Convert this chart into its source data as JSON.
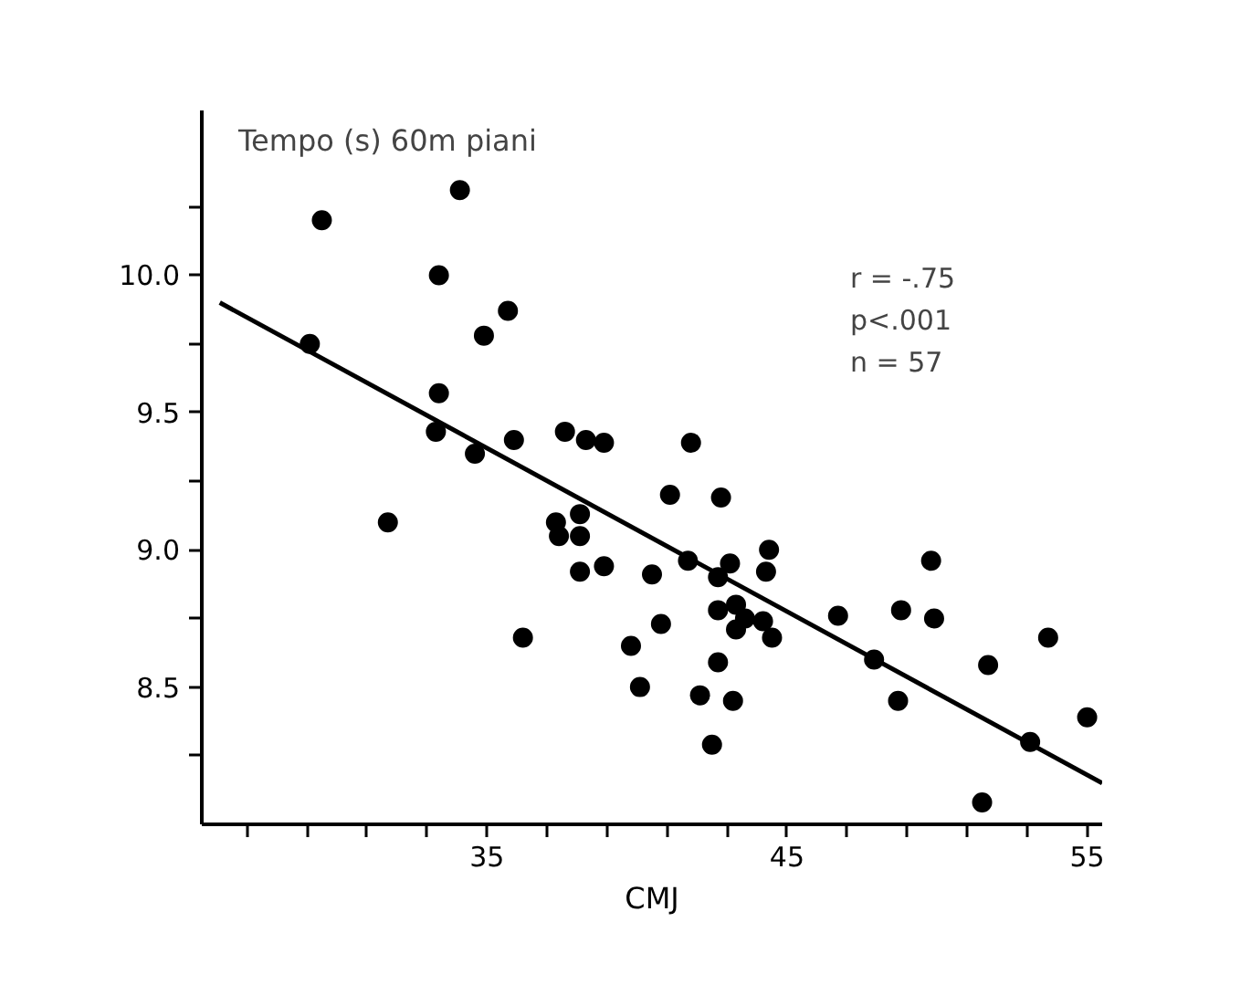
{
  "chart_data": {
    "type": "scatter",
    "xlabel": "CMJ",
    "ylabel": "Tempo (s) 60m piani",
    "marker": "circle",
    "grid": false,
    "annotations": [
      "r = -.75",
      "p<.001",
      "n = 57"
    ],
    "xlim": [
      25.5,
      55.5
    ],
    "ylim": [
      8.0,
      10.6
    ],
    "xticks": [
      {
        "value": 27,
        "label": null
      },
      {
        "value": 29,
        "label": null
      },
      {
        "value": 31,
        "label": null
      },
      {
        "value": 33,
        "label": null
      },
      35,
      {
        "value": 37,
        "label": null
      },
      {
        "value": 39,
        "label": null
      },
      {
        "value": 41,
        "label": null
      },
      {
        "value": 43,
        "label": null
      },
      45,
      {
        "value": 47,
        "label": null
      },
      {
        "value": 49,
        "label": null
      },
      {
        "value": 51,
        "label": null
      },
      {
        "value": 53,
        "label": null
      },
      55
    ],
    "yticks": [
      {
        "value": 8.25,
        "label": null
      },
      8.5,
      {
        "value": 8.75,
        "label": null
      },
      {
        "value": 9.0,
        "label": "9.0"
      },
      {
        "value": 9.25,
        "label": null
      },
      9.5,
      {
        "value": 9.75,
        "label": null
      },
      {
        "value": 10.0,
        "label": "10.0"
      },
      {
        "value": 10.25,
        "label": null
      }
    ],
    "series": [
      {
        "color": "#000000",
        "x": [
          29.1,
          29.5,
          31.7,
          34.1,
          33.4,
          35.7,
          34.9,
          33.4,
          33.3,
          34.6,
          35.9,
          37.6,
          38.3,
          38.9,
          41.8,
          41.1,
          37.3,
          38.1,
          37.4,
          38.1,
          38.1,
          38.9,
          36.2,
          39.8,
          42.8,
          40.5,
          41.7,
          42.7,
          43.1,
          44.4,
          44.3,
          40.8,
          42.7,
          43.3,
          43.6,
          43.3,
          44.2,
          44.5,
          46.7,
          48.8,
          49.8,
          49.9,
          47.9,
          53.7,
          51.7,
          40.1,
          42.1,
          43.2,
          42.7,
          42.5,
          48.7,
          55.0,
          53.1,
          51.5
        ],
        "values": [
          9.75,
          10.2,
          9.1,
          10.31,
          10.0,
          9.87,
          9.78,
          9.57,
          9.43,
          9.35,
          9.4,
          9.43,
          9.4,
          9.39,
          9.39,
          9.2,
          9.1,
          9.13,
          9.05,
          9.05,
          8.92,
          8.94,
          8.68,
          8.65,
          9.19,
          8.91,
          8.96,
          8.9,
          8.95,
          9.0,
          8.92,
          8.73,
          8.78,
          8.8,
          8.75,
          8.71,
          8.74,
          8.68,
          8.76,
          8.78,
          8.96,
          8.75,
          8.6,
          8.68,
          8.58,
          8.5,
          8.47,
          8.45,
          8.59,
          8.29,
          8.45,
          8.39,
          8.3,
          8.08
        ]
      },
      {
        "type": "line",
        "color": "#000000",
        "x": [
          26.1,
          55.5
        ],
        "values": [
          9.9,
          8.15
        ],
        "marker": "none",
        "line_style": "solid"
      }
    ]
  }
}
